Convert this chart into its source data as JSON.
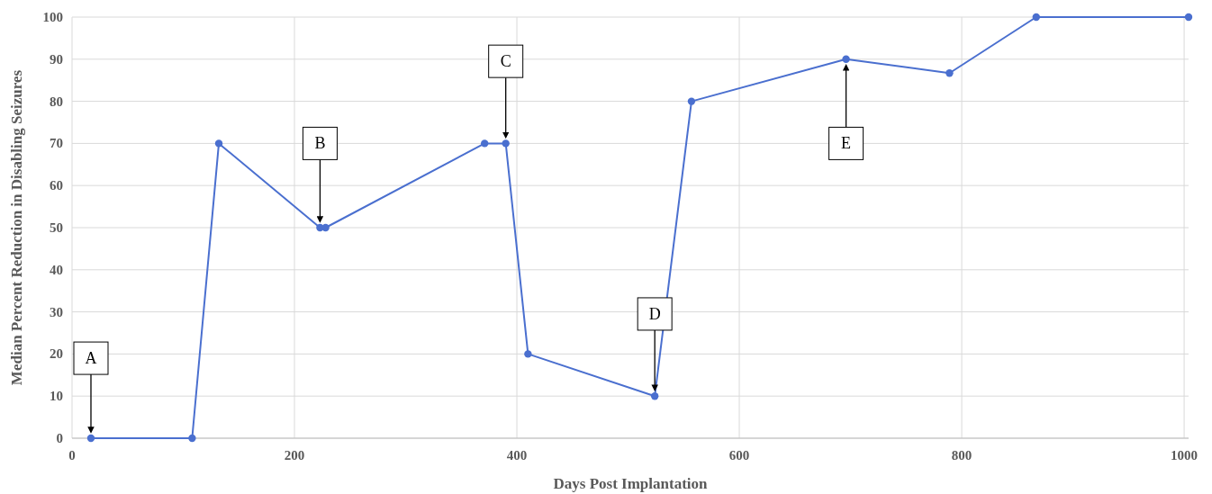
{
  "chart_data": {
    "type": "line",
    "xlabel": "Days Post Implantation",
    "ylabel": "Median Percent Reduction in Disabling Seizures",
    "x": [
      17,
      108,
      132,
      223,
      228,
      371,
      390,
      410,
      524,
      557,
      696,
      789,
      867,
      1004
    ],
    "series": [
      {
        "color": "#4a6fcf",
        "values": [
          0,
          0,
          70,
          50,
          50,
          70,
          70,
          20,
          10,
          80,
          90,
          86.7,
          100,
          100
        ]
      }
    ],
    "xlim": [
      0,
      1004
    ],
    "xticks": [
      0,
      200,
      400,
      600,
      800,
      1000
    ],
    "ylim": [
      0,
      100
    ],
    "yticks": [
      0,
      10,
      20,
      30,
      40,
      50,
      60,
      70,
      80,
      90,
      100
    ],
    "grid": true,
    "marker": "circle",
    "line_style": "solid",
    "annotations": [
      {
        "text": "A",
        "x": 17,
        "y": 19
      },
      {
        "text": "B",
        "x": 223,
        "y": 70
      },
      {
        "text": "C",
        "x": 390,
        "y": 89.5
      },
      {
        "text": "D",
        "x": 524,
        "y": 29.5
      },
      {
        "text": "E",
        "x": 696,
        "y": 70
      }
    ]
  }
}
